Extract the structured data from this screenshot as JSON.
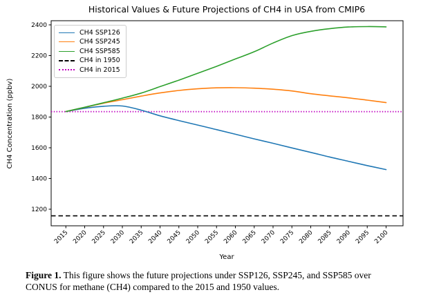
{
  "figure": {
    "title": "Historical Values & Future Projections of CH4 in USA from CMIP6",
    "xlabel": "Year",
    "ylabel": "CH4 Concentration (ppbv)"
  },
  "legend": {
    "items": [
      {
        "label": "CH4 SSP126",
        "color": "#1f77b4",
        "style": "solid"
      },
      {
        "label": "CH4 SSP245",
        "color": "#ff7f0e",
        "style": "solid"
      },
      {
        "label": "CH4 SSP585",
        "color": "#2ca02c",
        "style": "solid"
      },
      {
        "label": "CH4 in 1950",
        "color": "#000000",
        "style": "dashed"
      },
      {
        "label": "CH4 in 2015",
        "color": "#bf00bf",
        "style": "dotted"
      }
    ]
  },
  "chart_data": {
    "type": "line",
    "title": "Historical Values & Future Projections of CH4 in USA from CMIP6",
    "xlabel": "Year",
    "ylabel": "CH4 Concentration (ppbv)",
    "x": [
      2015,
      2020,
      2025,
      2030,
      2035,
      2040,
      2045,
      2050,
      2055,
      2060,
      2065,
      2070,
      2075,
      2080,
      2085,
      2090,
      2095,
      2100
    ],
    "series": [
      {
        "name": "CH4 SSP126",
        "color": "#1f77b4",
        "style": "solid",
        "values": [
          1836,
          1857,
          1870,
          1872,
          1845,
          1808,
          1777,
          1748,
          1718,
          1688,
          1658,
          1629,
          1599,
          1570,
          1540,
          1512,
          1484,
          1458
        ]
      },
      {
        "name": "CH4 SSP245",
        "color": "#ff7f0e",
        "style": "solid",
        "values": [
          1836,
          1863,
          1890,
          1913,
          1936,
          1957,
          1973,
          1984,
          1990,
          1991,
          1988,
          1981,
          1970,
          1952,
          1938,
          1925,
          1910,
          1894
        ]
      },
      {
        "name": "CH4 SSP585",
        "color": "#2ca02c",
        "style": "solid",
        "values": [
          1836,
          1864,
          1893,
          1923,
          1956,
          1998,
          2040,
          2085,
          2130,
          2178,
          2225,
          2282,
          2330,
          2358,
          2375,
          2386,
          2389,
          2387
        ]
      }
    ],
    "reference_lines": [
      {
        "name": "CH4 in 1950",
        "value": 1157,
        "color": "#000000",
        "style": "dashed"
      },
      {
        "name": "CH4 in 2015",
        "value": 1835,
        "color": "#bf00bf",
        "style": "dotted"
      }
    ],
    "xlim": [
      2011.1,
      2104.5
    ],
    "ylim": [
      1092,
      2427
    ],
    "xticks": [
      2015,
      2020,
      2025,
      2030,
      2035,
      2040,
      2045,
      2050,
      2055,
      2060,
      2065,
      2070,
      2075,
      2080,
      2085,
      2090,
      2095,
      2100
    ],
    "yticks": [
      1200,
      1400,
      1600,
      1800,
      2000,
      2200,
      2400
    ],
    "grid": false,
    "legend_position": "upper left"
  },
  "caption": {
    "prefix": "Figure 1.",
    "line1": " This figure shows the future projections under SSP126, SSP245, and SSP585 over",
    "line2": "CONUS for methane (CH4) compared to the 2015 and 1950 values."
  }
}
